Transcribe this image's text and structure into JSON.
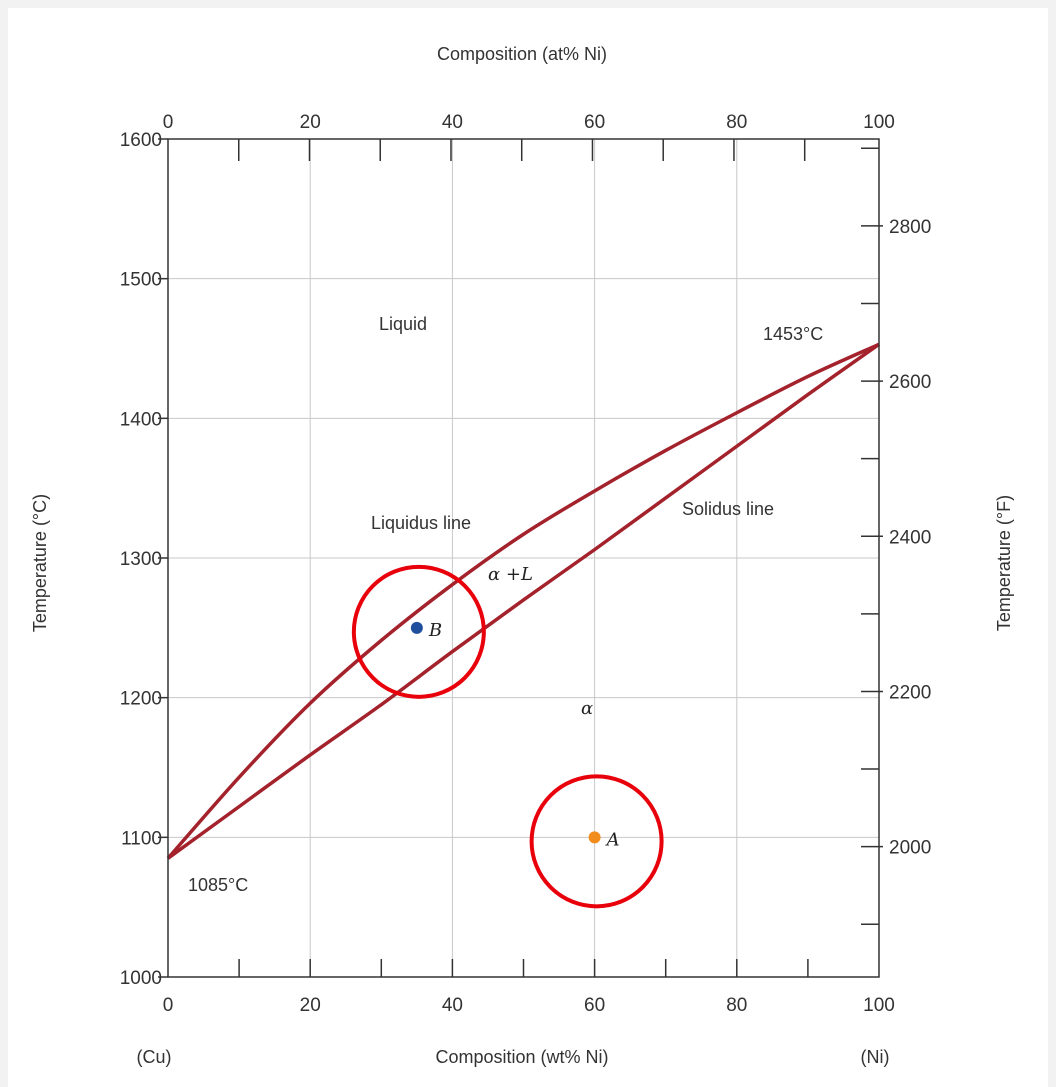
{
  "chart_data": {
    "type": "line",
    "title": "",
    "x_axis_bottom": {
      "label": "Composition (wt% Ni)",
      "range": [
        0,
        100
      ],
      "ticks": [
        0,
        20,
        40,
        60,
        80,
        100
      ],
      "tick_labels": [
        "0",
        "20",
        "40",
        "60",
        "80",
        "100"
      ],
      "left_end_label": "(Cu)",
      "right_end_label": "(Ni)"
    },
    "x_axis_top": {
      "label": "Composition (at% Ni)",
      "ticks": [
        0,
        20,
        40,
        60,
        80,
        100
      ],
      "tick_labels": [
        "0",
        "20",
        "40",
        "60",
        "80",
        "100"
      ]
    },
    "y_axis_left": {
      "label": "Temperature (°C)",
      "range": [
        1000,
        1600
      ],
      "ticks": [
        1000,
        1100,
        1200,
        1300,
        1400,
        1500,
        1600
      ],
      "tick_labels": [
        "1000",
        "1100",
        "1200",
        "1300",
        "1400",
        "1500",
        "1600"
      ]
    },
    "y_axis_right": {
      "label": "Temperature (°F)",
      "ticks": [
        2000,
        2200,
        2400,
        2600,
        2800
      ],
      "tick_labels": [
        "2000",
        "2200",
        "2400",
        "2600",
        "2800"
      ]
    },
    "grid": true,
    "series": [
      {
        "name": "Liquidus line",
        "color": "#a3222c",
        "points": [
          [
            0,
            1085
          ],
          [
            10,
            1143
          ],
          [
            20,
            1196
          ],
          [
            30,
            1241
          ],
          [
            40,
            1281
          ],
          [
            50,
            1317
          ],
          [
            60,
            1348
          ],
          [
            70,
            1377
          ],
          [
            80,
            1404
          ],
          [
            90,
            1430
          ],
          [
            100,
            1453
          ]
        ]
      },
      {
        "name": "Solidus line",
        "color": "#a3222c",
        "points": [
          [
            0,
            1085
          ],
          [
            10,
            1122
          ],
          [
            20,
            1159
          ],
          [
            30,
            1195
          ],
          [
            40,
            1233
          ],
          [
            50,
            1270
          ],
          [
            60,
            1306
          ],
          [
            70,
            1343
          ],
          [
            80,
            1380
          ],
          [
            90,
            1417
          ],
          [
            100,
            1453
          ]
        ]
      }
    ],
    "labels": {
      "liquid": "Liquid",
      "liquidus": "Liquidus line",
      "solidus": "Solidus line",
      "two_phase": "α +L",
      "alpha": "α",
      "t_ni": "1453°C",
      "t_cu": "1085°C"
    },
    "points_of_interest": [
      {
        "label": "A",
        "x": 60,
        "y": 1100,
        "color": "#f28c1c"
      },
      {
        "label": "B",
        "x": 35,
        "y": 1250,
        "color": "#1f4e9c"
      }
    ],
    "highlight_color": "#e8000b"
  }
}
